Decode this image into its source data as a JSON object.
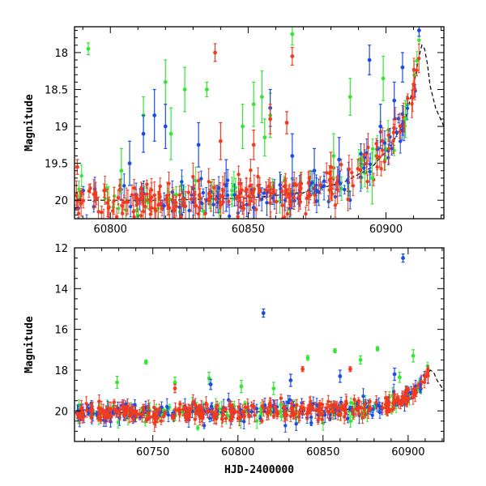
{
  "chart_data": [
    {
      "type": "scatter",
      "panel": "top",
      "xlim": [
        60787,
        60921
      ],
      "ylim": [
        20.25,
        17.65
      ],
      "y_inverted": true,
      "xticks": [
        60800,
        60850,
        60900
      ],
      "yticks": [
        18,
        18.5,
        19,
        19.5,
        20
      ],
      "xlabel": "",
      "ylabel": "Magnitude",
      "colors": {
        "green": "#33e633",
        "blue": "#1a4de6",
        "red": "#f23a1f",
        "model": "#000000"
      },
      "model_curve": {
        "x": [
          60787,
          60820,
          60850,
          60870,
          60885,
          60895,
          60902,
          60907,
          60910,
          60912,
          60913,
          60914,
          60915,
          60916,
          60918,
          60921
        ],
        "y": [
          20.0,
          20.0,
          19.97,
          19.9,
          19.75,
          19.55,
          19.25,
          18.9,
          18.45,
          18.05,
          17.9,
          17.95,
          18.15,
          18.45,
          18.75,
          19.0
        ]
      },
      "outliers": {
        "green": [
          {
            "x": 60792,
            "y": 17.95,
            "err": 0.08
          },
          {
            "x": 60804,
            "y": 19.6,
            "err": 0.3
          },
          {
            "x": 60812,
            "y": 18.85,
            "err": 0.25
          },
          {
            "x": 60820,
            "y": 18.4,
            "err": 0.3
          },
          {
            "x": 60822,
            "y": 19.1,
            "err": 0.35
          },
          {
            "x": 60827,
            "y": 18.5,
            "err": 0.3
          },
          {
            "x": 60835,
            "y": 18.5,
            "err": 0.1
          },
          {
            "x": 60848,
            "y": 19.0,
            "err": 0.3
          },
          {
            "x": 60852,
            "y": 18.7,
            "err": 0.3
          },
          {
            "x": 60855,
            "y": 18.6,
            "err": 0.35
          },
          {
            "x": 60856,
            "y": 19.15,
            "err": 0.25
          },
          {
            "x": 60858,
            "y": 18.85,
            "err": 0.3
          },
          {
            "x": 60866,
            "y": 17.75,
            "err": 0.15
          },
          {
            "x": 60881,
            "y": 19.4,
            "err": 0.3
          },
          {
            "x": 60887,
            "y": 18.6,
            "err": 0.25
          },
          {
            "x": 60895,
            "y": 19.7,
            "err": 0.35
          },
          {
            "x": 60899,
            "y": 18.35,
            "err": 0.3
          },
          {
            "x": 60907,
            "y": 18.9,
            "err": 0.25
          }
        ],
        "blue": [
          {
            "x": 60807,
            "y": 19.5,
            "err": 0.3
          },
          {
            "x": 60812,
            "y": 19.1,
            "err": 0.25
          },
          {
            "x": 60816,
            "y": 18.85,
            "err": 0.35
          },
          {
            "x": 60820,
            "y": 19.0,
            "err": 0.3
          },
          {
            "x": 60832,
            "y": 19.25,
            "err": 0.3
          },
          {
            "x": 60842,
            "y": 19.8,
            "err": 0.35
          },
          {
            "x": 60858,
            "y": 18.75,
            "err": 0.25
          },
          {
            "x": 60866,
            "y": 19.4,
            "err": 0.3
          },
          {
            "x": 60874,
            "y": 19.6,
            "err": 0.3
          },
          {
            "x": 60883,
            "y": 19.45,
            "err": 0.3
          },
          {
            "x": 60894,
            "y": 18.1,
            "err": 0.2
          },
          {
            "x": 60898,
            "y": 19.0,
            "err": 0.3
          },
          {
            "x": 60903,
            "y": 18.65,
            "err": 0.25
          },
          {
            "x": 60906,
            "y": 18.2,
            "err": 0.2
          },
          {
            "x": 60912,
            "y": 17.7,
            "err": 0.08
          }
        ],
        "red": [
          {
            "x": 60788,
            "y": 19.55,
            "err": 0.1
          },
          {
            "x": 60838,
            "y": 18.0,
            "err": 0.12
          },
          {
            "x": 60840,
            "y": 19.2,
            "err": 0.25
          },
          {
            "x": 60852,
            "y": 19.25,
            "err": 0.2
          },
          {
            "x": 60858,
            "y": 18.9,
            "err": 0.2
          },
          {
            "x": 60864,
            "y": 18.95,
            "err": 0.15
          },
          {
            "x": 60866,
            "y": 18.05,
            "err": 0.12
          },
          {
            "x": 60880,
            "y": 19.55,
            "err": 0.2
          }
        ]
      }
    },
    {
      "type": "scatter",
      "panel": "bottom",
      "xlim": [
        60704,
        60921
      ],
      "ylim": [
        21.5,
        12
      ],
      "y_inverted": true,
      "xticks": [
        60750,
        60800,
        60850,
        60900
      ],
      "yticks": [
        12,
        14,
        16,
        18,
        20
      ],
      "xlabel": "HJD-2400000",
      "ylabel": "Magnitude",
      "colors": {
        "green": "#33e633",
        "blue": "#1a4de6",
        "red": "#f23a1f",
        "model": "#000000"
      },
      "model_curve": {
        "x": [
          60704,
          60800,
          60850,
          60880,
          60895,
          60905,
          60910,
          60913,
          60915,
          60917,
          60921
        ],
        "y": [
          20.1,
          20.05,
          20.0,
          19.85,
          19.55,
          19.0,
          18.5,
          18.0,
          18.1,
          18.5,
          19.0
        ]
      },
      "outliers": {
        "green": [
          {
            "x": 60729,
            "y": 18.6,
            "err": 0.3
          },
          {
            "x": 60746,
            "y": 17.6,
            "err": 0.1
          },
          {
            "x": 60763,
            "y": 18.6,
            "err": 0.25
          },
          {
            "x": 60783,
            "y": 18.4,
            "err": 0.3
          },
          {
            "x": 60802,
            "y": 18.8,
            "err": 0.3
          },
          {
            "x": 60821,
            "y": 18.9,
            "err": 0.3
          },
          {
            "x": 60841,
            "y": 17.4,
            "err": 0.12
          },
          {
            "x": 60857,
            "y": 17.05,
            "err": 0.1
          },
          {
            "x": 60872,
            "y": 17.5,
            "err": 0.2
          },
          {
            "x": 60882,
            "y": 16.95,
            "err": 0.1
          },
          {
            "x": 60903,
            "y": 17.3,
            "err": 0.3
          },
          {
            "x": 60895,
            "y": 18.35,
            "err": 0.25
          }
        ],
        "blue": [
          {
            "x": 60784,
            "y": 18.7,
            "err": 0.25
          },
          {
            "x": 60815,
            "y": 15.2,
            "err": 0.2
          },
          {
            "x": 60831,
            "y": 18.5,
            "err": 0.3
          },
          {
            "x": 60860,
            "y": 18.3,
            "err": 0.3
          },
          {
            "x": 60892,
            "y": 18.2,
            "err": 0.3
          },
          {
            "x": 60897,
            "y": 12.5,
            "err": 0.2
          }
        ],
        "red": [
          {
            "x": 60838,
            "y": 17.95,
            "err": 0.12
          },
          {
            "x": 60866,
            "y": 17.95,
            "err": 0.12
          },
          {
            "x": 60763,
            "y": 18.9,
            "err": 0.2
          }
        ]
      }
    }
  ],
  "scatter_cloud": {
    "seed": 12345,
    "top": {
      "x_start": 60787,
      "x_end": 60912,
      "counts": {
        "green": 70,
        "blue": 110,
        "red": 230
      }
    },
    "bottom": {
      "x_start": 60705,
      "x_end": 60912,
      "counts": {
        "green": 130,
        "blue": 180,
        "red": 320
      }
    }
  }
}
